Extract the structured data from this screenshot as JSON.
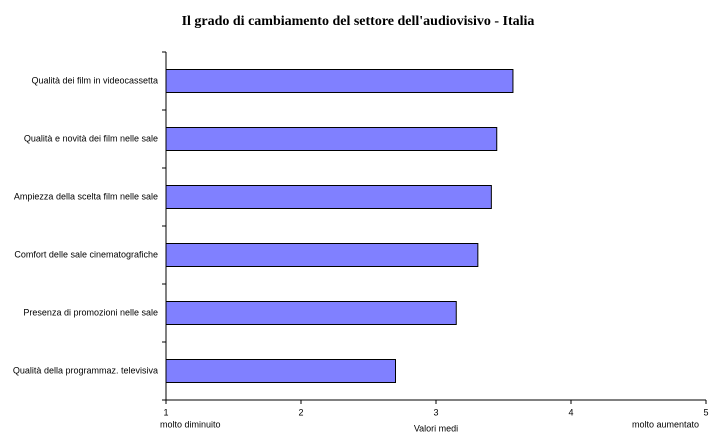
{
  "chart_data": {
    "type": "barh",
    "title": "Il grado di cambiamento del settore dell'audiovisivo - Italia",
    "categories": [
      "Qualità dei film in videocassetta",
      "Qualità e novità dei film nelle sale",
      "Ampiezza della scelta film nelle sale",
      "Comfort delle sale cinematografiche",
      "Presenza di promozioni nelle sale",
      "Qualità della programmaz. televisiva"
    ],
    "values": [
      3.57,
      3.45,
      3.41,
      3.31,
      3.15,
      2.7
    ],
    "color": "#8080ff",
    "xlim": [
      1,
      5
    ],
    "xticks": [
      1,
      2,
      3,
      4,
      5
    ],
    "x_label": "Valori medi",
    "x_end_labels": [
      "molto diminuito",
      "molto aumentato"
    ],
    "grid": false
  }
}
